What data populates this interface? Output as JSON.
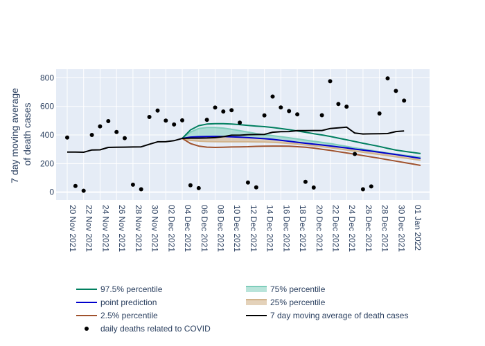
{
  "chart_data": {
    "type": "line",
    "ylabel_lines": [
      "7 day moving average",
      "of death cases"
    ],
    "ylim": [
      -55,
      860
    ],
    "y_ticks": [
      0,
      200,
      400,
      600,
      800
    ],
    "x_start": "2021-11-19",
    "x_end": "2022-01-03",
    "x_ticks": [
      {
        "day": 1,
        "label": "20 Nov 2021"
      },
      {
        "day": 3,
        "label": "22 Nov 2021"
      },
      {
        "day": 5,
        "label": "24 Nov 2021"
      },
      {
        "day": 7,
        "label": "26 Nov 2021"
      },
      {
        "day": 9,
        "label": "28 Nov 2021"
      },
      {
        "day": 11,
        "label": "30 Nov 2021"
      },
      {
        "day": 13,
        "label": "02 Dec 2021"
      },
      {
        "day": 15,
        "label": "04 Dec 2021"
      },
      {
        "day": 17,
        "label": "06 Dec 2021"
      },
      {
        "day": 19,
        "label": "08 Dec 2021"
      },
      {
        "day": 21,
        "label": "10 Dec 2021"
      },
      {
        "day": 23,
        "label": "12 Dec 2021"
      },
      {
        "day": 25,
        "label": "14 Dec 2021"
      },
      {
        "day": 27,
        "label": "16 Dec 2021"
      },
      {
        "day": 29,
        "label": "18 Dec 2021"
      },
      {
        "day": 31,
        "label": "20 Dec 2021"
      },
      {
        "day": 33,
        "label": "22 Dec 2021"
      },
      {
        "day": 35,
        "label": "24 Dec 2021"
      },
      {
        "day": 37,
        "label": "26 Dec 2021"
      },
      {
        "day": 39,
        "label": "28 Dec 2021"
      },
      {
        "day": 41,
        "label": "30 Dec 2021"
      },
      {
        "day": 43,
        "label": "01 Jan 2022"
      }
    ],
    "colors": {
      "p975": "#007f5f",
      "p75": "#7fcdbb",
      "point": "#0000cc",
      "p25": "#a0522d",
      "p025": "#a0522d",
      "moving_avg": "#000000",
      "daily": "#000000",
      "band_upper": "#7fcdbb",
      "band_lower": "#d2b48c",
      "plot_bg": "#e5ecf6",
      "grid": "#ffffff"
    },
    "series": [
      {
        "key": "daily",
        "name": "daily deaths related to COVID",
        "kind": "markers",
        "x": [
          1,
          2,
          3,
          4,
          5,
          6,
          7,
          8,
          9,
          10,
          11,
          12,
          13,
          14,
          15,
          16,
          17,
          18,
          19,
          20,
          21,
          22,
          23,
          24,
          25,
          26,
          27,
          28,
          29,
          30,
          31,
          32,
          33,
          34,
          35,
          36,
          37,
          38,
          39,
          40,
          41,
          42
        ],
        "y": [
          382,
          43,
          10,
          400,
          460,
          497,
          421,
          378,
          52,
          20,
          526,
          571,
          501,
          473,
          502,
          48,
          28,
          506,
          592,
          564,
          573,
          486,
          67,
          33,
          537,
          669,
          593,
          567,
          544,
          72,
          32,
          538,
          776,
          617,
          598,
          267,
          20,
          40,
          550,
          796,
          708,
          640
        ]
      },
      {
        "key": "moving_avg",
        "name": "7 day moving average of death cases",
        "kind": "line",
        "x": [
          1,
          2,
          3,
          4,
          5,
          6,
          7,
          8,
          9,
          10,
          11,
          12,
          13,
          14,
          15,
          16,
          17,
          18,
          19,
          20,
          21,
          22,
          23,
          24,
          25,
          26,
          27,
          28,
          29,
          30,
          31,
          32,
          33,
          34,
          35,
          36,
          37,
          38,
          39,
          40,
          41,
          42
        ],
        "y": [
          280,
          280,
          279,
          295,
          296,
          313,
          314,
          315,
          316,
          317,
          335,
          352,
          353,
          360,
          376,
          378,
          378,
          379,
          381,
          388,
          398,
          398,
          402,
          403,
          404,
          419,
          423,
          424,
          430,
          430,
          431,
          431,
          445,
          450,
          455,
          413,
          407,
          408,
          409,
          410,
          424,
          428
        ]
      },
      {
        "key": "p975",
        "name": "97.5% percentile",
        "kind": "line",
        "x": [
          15,
          16,
          17,
          18,
          19,
          20,
          21,
          22,
          23,
          24,
          25,
          26,
          27,
          28,
          29,
          30,
          31,
          32,
          33,
          34,
          35,
          36,
          37,
          38,
          39,
          40,
          41,
          42,
          43,
          44
        ],
        "y": [
          376,
          435,
          465,
          476,
          479,
          479,
          476,
          472,
          467,
          462,
          458,
          452,
          445,
          437,
          428,
          419,
          409,
          400,
          390,
          378,
          366,
          354,
          342,
          331,
          319,
          306,
          294,
          286,
          278,
          270
        ]
      },
      {
        "key": "p75",
        "name": "75% percentile",
        "kind": "line",
        "x": [
          15,
          16,
          17,
          18,
          19,
          20,
          21,
          22,
          23,
          24,
          25,
          26,
          27,
          28,
          29,
          30,
          31,
          32,
          33,
          34,
          35,
          36,
          37,
          38,
          39,
          40,
          41,
          42,
          43,
          44
        ],
        "y": [
          376,
          420,
          445,
          452,
          452,
          448,
          440,
          430,
          420,
          410,
          402,
          395,
          388,
          380,
          372,
          364,
          356,
          348,
          340,
          330,
          320,
          310,
          301,
          292,
          283,
          274,
          265,
          258,
          251,
          244
        ]
      },
      {
        "key": "point",
        "name": "point prediction",
        "kind": "line",
        "x": [
          15,
          16,
          17,
          18,
          19,
          20,
          21,
          22,
          23,
          24,
          25,
          26,
          27,
          28,
          29,
          30,
          31,
          32,
          33,
          34,
          35,
          36,
          37,
          38,
          39,
          40,
          41,
          42,
          43,
          44
        ],
        "y": [
          376,
          385,
          388,
          389,
          390,
          389,
          387,
          384,
          381,
          378,
          374,
          369,
          363,
          356,
          349,
          342,
          336,
          330,
          323,
          316,
          309,
          301,
          294,
          287,
          279,
          271,
          263,
          254,
          245,
          236
        ]
      },
      {
        "key": "p25",
        "name": "25% percentile",
        "kind": "line",
        "x": [
          15,
          16,
          17,
          18,
          19,
          20,
          21,
          22,
          23,
          24,
          25,
          26,
          27,
          28,
          29,
          30,
          31,
          32,
          33,
          34,
          35,
          36,
          37,
          38,
          39,
          40,
          41,
          42,
          43,
          44
        ],
        "y": [
          376,
          362,
          357,
          354,
          353,
          352,
          352,
          352,
          352,
          351,
          350,
          348,
          345,
          341,
          336,
          330,
          324,
          318,
          311,
          303,
          295,
          287,
          279,
          271,
          263,
          255,
          247,
          239,
          231,
          223
        ]
      },
      {
        "key": "p025",
        "name": "2.5% percentile",
        "kind": "line",
        "x": [
          15,
          16,
          17,
          18,
          19,
          20,
          21,
          22,
          23,
          24,
          25,
          26,
          27,
          28,
          29,
          30,
          31,
          32,
          33,
          34,
          35,
          36,
          37,
          38,
          39,
          40,
          41,
          42,
          43,
          44
        ],
        "y": [
          376,
          340,
          322,
          315,
          313,
          314,
          316,
          317,
          318,
          320,
          321,
          322,
          322,
          321,
          318,
          314,
          308,
          300,
          292,
          283,
          274,
          265,
          256,
          246,
          237,
          227,
          217,
          207,
          197,
          187
        ]
      }
    ],
    "legend": {
      "placement": "bottom",
      "entries": [
        {
          "key": "p975",
          "label": "97.5% percentile",
          "symbol": "line"
        },
        {
          "key": "p75",
          "label": "75% percentile",
          "symbol": "band_upper"
        },
        {
          "key": "point",
          "label": "point prediction",
          "symbol": "line"
        },
        {
          "key": "p25",
          "label": "25% percentile",
          "symbol": "band_lower"
        },
        {
          "key": "p025",
          "label": "2.5% percentile",
          "symbol": "line"
        },
        {
          "key": "moving_avg",
          "label": "7 day moving average of death cases",
          "symbol": "line"
        },
        {
          "key": "daily",
          "label": "daily deaths related to COVID",
          "symbol": "marker"
        }
      ]
    }
  }
}
